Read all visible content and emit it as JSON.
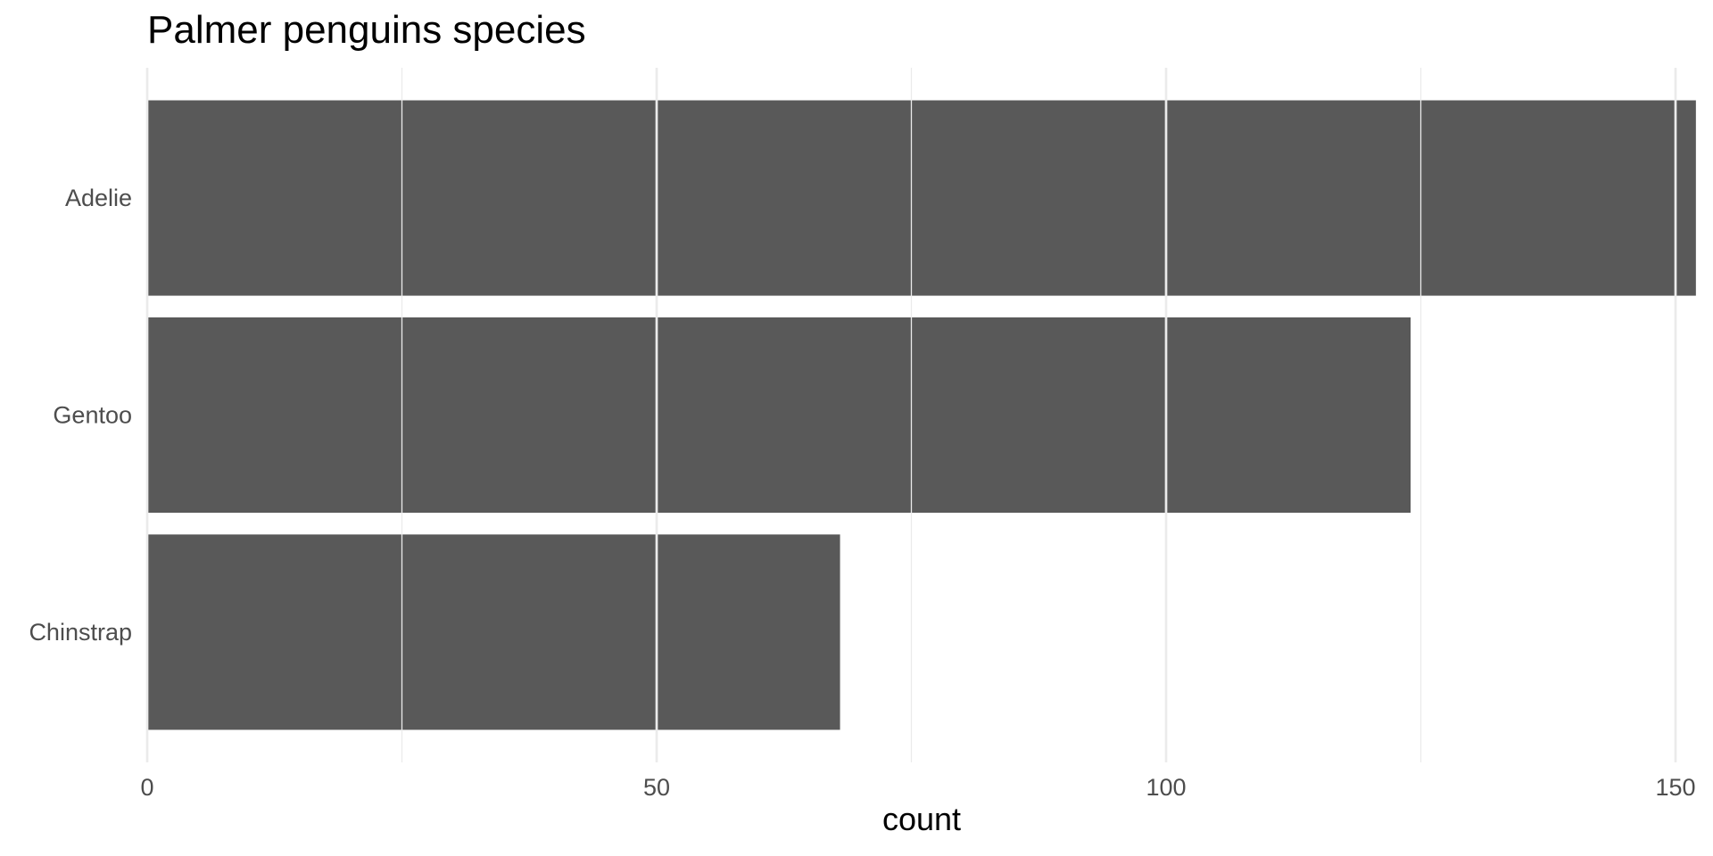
{
  "chart_data": {
    "type": "bar",
    "orientation": "horizontal",
    "title": "Palmer penguins species",
    "xlabel": "count",
    "ylabel": "",
    "categories": [
      "Adelie",
      "Gentoo",
      "Chinstrap"
    ],
    "values": [
      152,
      124,
      68
    ],
    "xlim": [
      0,
      152
    ],
    "xticks": [
      0,
      50,
      100,
      150
    ],
    "xtick_labels": [
      "0",
      "50",
      "100",
      "150"
    ],
    "minor_xticks": [
      25,
      75,
      125
    ],
    "grid": true,
    "bar_color": "#595959",
    "grid_color": "#ebebeb",
    "legend": "none"
  }
}
